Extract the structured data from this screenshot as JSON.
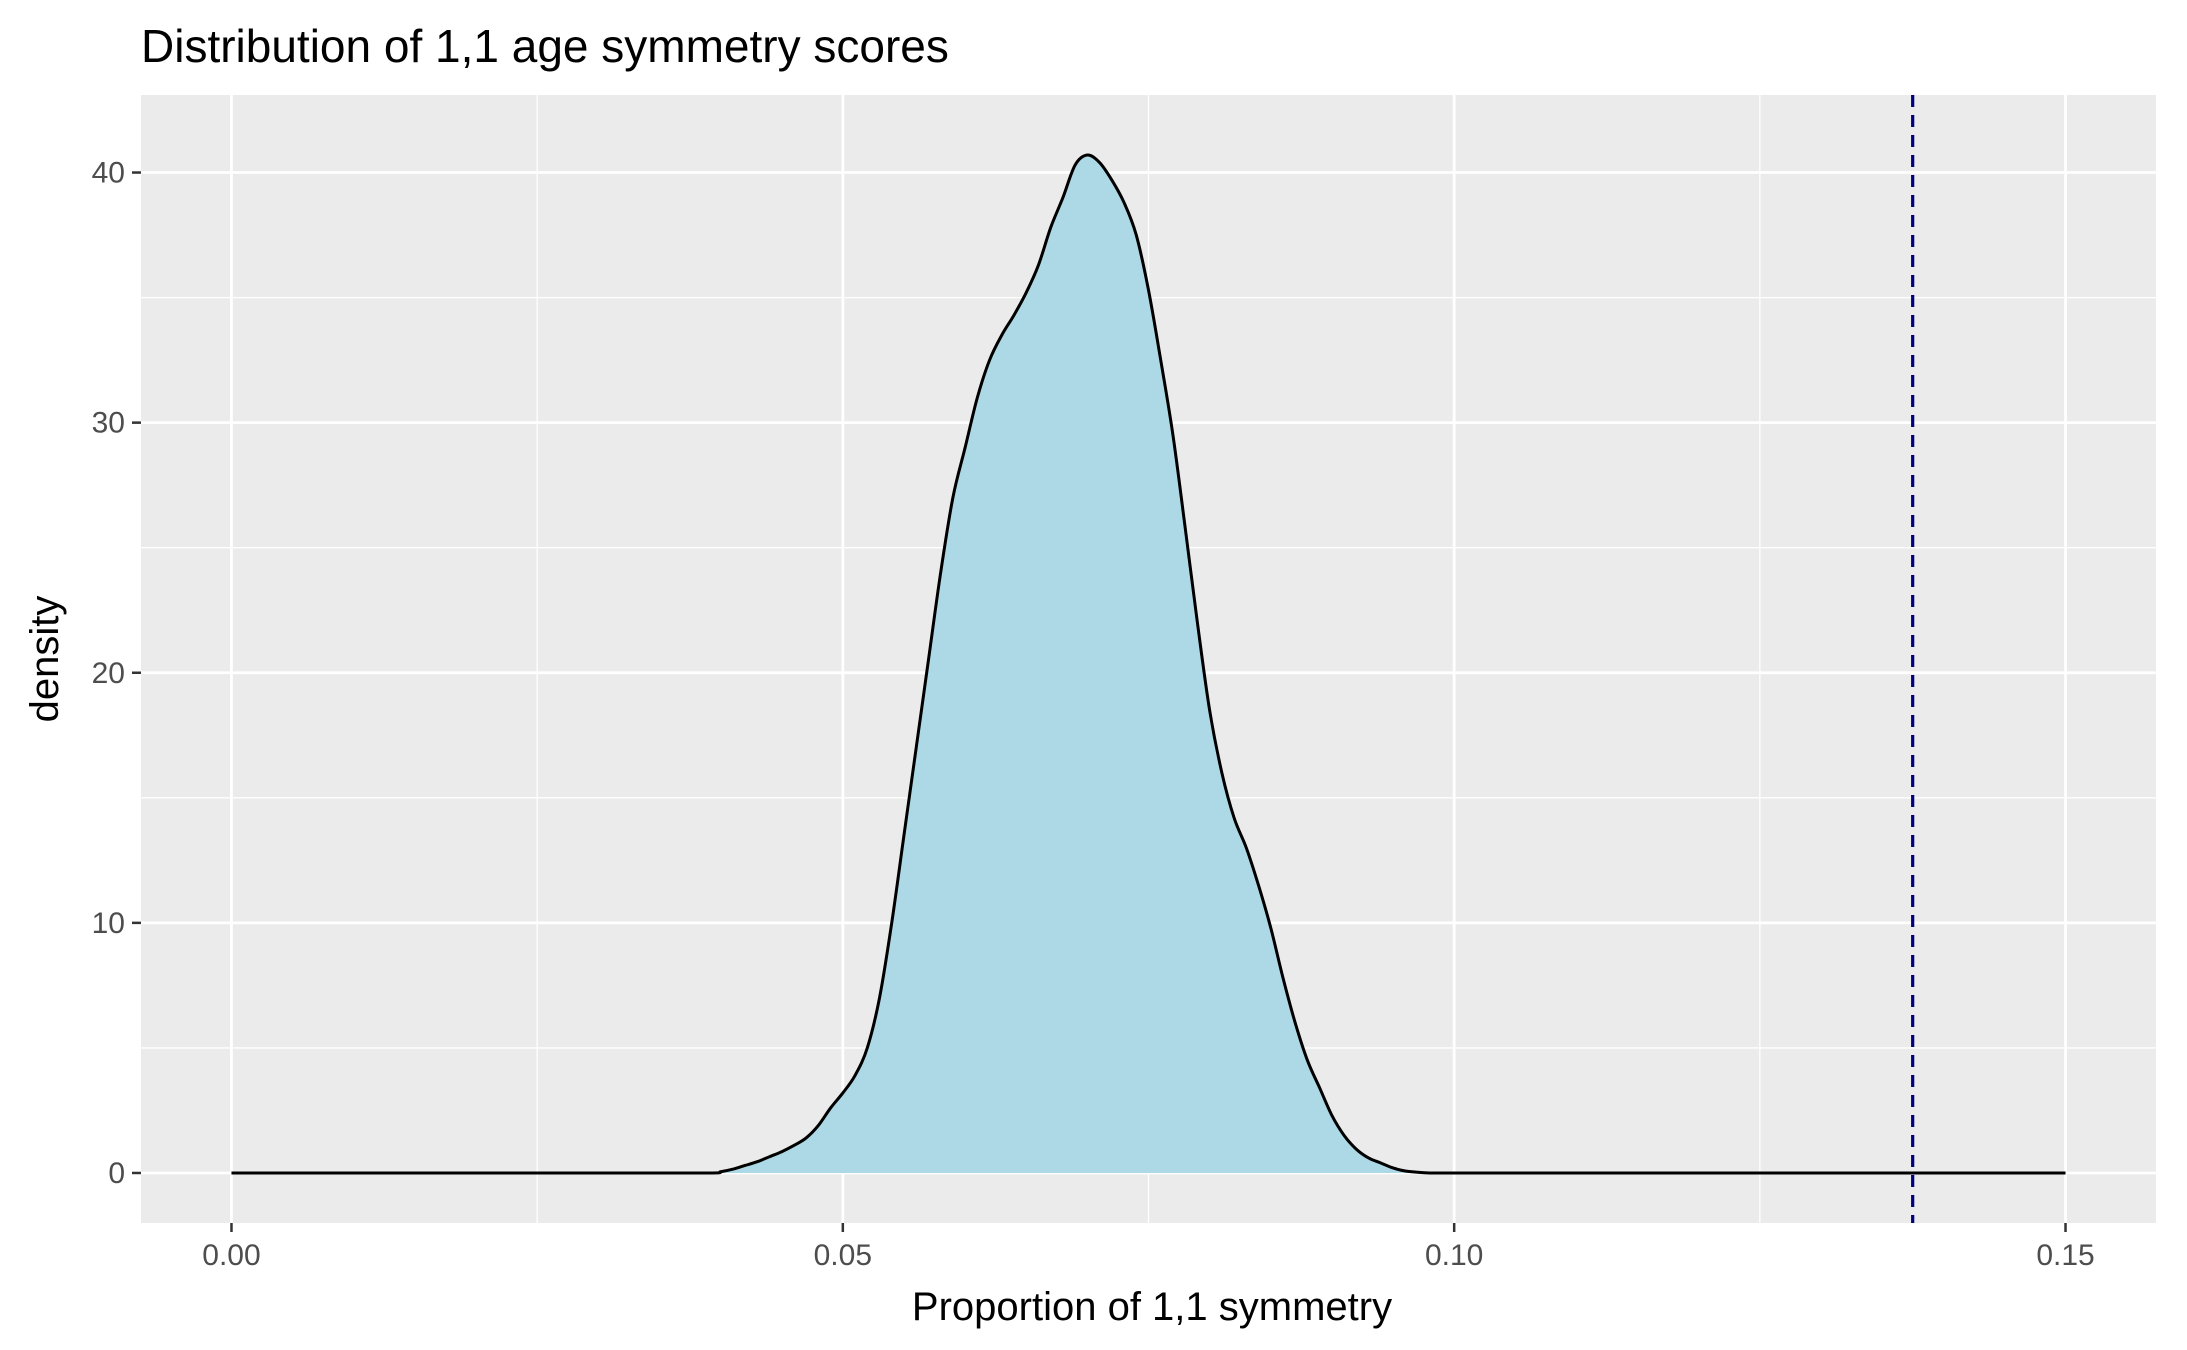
{
  "chart_data": {
    "type": "area",
    "title": "Distribution of 1,1 age symmetry scores",
    "xlabel": "Proportion of 1,1 symmetry",
    "ylabel": "density",
    "xlim": [
      -0.0074,
      0.1574
    ],
    "ylim": [
      -2.0,
      43.1
    ],
    "x_ticks": [
      0.0,
      0.05,
      0.1,
      0.15
    ],
    "x_tick_labels": [
      "0.00",
      "0.05",
      "0.10",
      "0.15"
    ],
    "y_ticks": [
      0,
      10,
      20,
      30,
      40
    ],
    "y_tick_labels": [
      "0",
      "10",
      "20",
      "30",
      "40"
    ],
    "grid": true,
    "legend": "none",
    "colors": {
      "panel": "#ebebeb",
      "grid": "#ffffff",
      "fill": "#add8e6",
      "outline": "#000000",
      "reference_line": "#000080"
    },
    "series": [
      {
        "x": [
          0.0,
          0.03,
          0.039,
          0.04,
          0.041,
          0.042,
          0.043,
          0.044,
          0.045,
          0.046,
          0.047,
          0.048,
          0.049,
          0.05,
          0.051,
          0.052,
          0.053,
          0.054,
          0.055,
          0.056,
          0.057,
          0.058,
          0.059,
          0.06,
          0.061,
          0.062,
          0.063,
          0.064,
          0.065,
          0.066,
          0.067,
          0.068,
          0.069,
          0.07,
          0.071,
          0.072,
          0.073,
          0.074,
          0.075,
          0.076,
          0.077,
          0.078,
          0.079,
          0.08,
          0.081,
          0.082,
          0.083,
          0.084,
          0.085,
          0.086,
          0.087,
          0.088,
          0.089,
          0.09,
          0.091,
          0.092,
          0.093,
          0.094,
          0.095,
          0.096,
          0.097,
          0.098,
          0.099,
          0.1,
          0.101,
          0.102,
          0.103,
          0.104,
          0.11,
          0.15
        ],
        "y": [
          0.0,
          0.0,
          0.0,
          0.05,
          0.15,
          0.3,
          0.45,
          0.65,
          0.85,
          1.1,
          1.4,
          1.9,
          2.6,
          3.2,
          3.9,
          5.0,
          7.0,
          10.0,
          13.5,
          17.0,
          20.5,
          24.0,
          27.0,
          29.0,
          31.0,
          32.5,
          33.5,
          34.3,
          35.2,
          36.3,
          37.8,
          39.0,
          40.3,
          40.7,
          40.4,
          39.7,
          38.8,
          37.5,
          35.3,
          32.5,
          29.5,
          25.8,
          22.0,
          18.5,
          16.0,
          14.2,
          13.0,
          11.5,
          9.8,
          7.8,
          6.0,
          4.5,
          3.4,
          2.3,
          1.5,
          0.95,
          0.6,
          0.4,
          0.2,
          0.08,
          0.03,
          0.0,
          0.0,
          0.0,
          0.0,
          0.0,
          0.0,
          0.0,
          0.0,
          0.0
        ]
      }
    ],
    "reference_line": {
      "x": 0.1375,
      "style": "dashed"
    }
  }
}
